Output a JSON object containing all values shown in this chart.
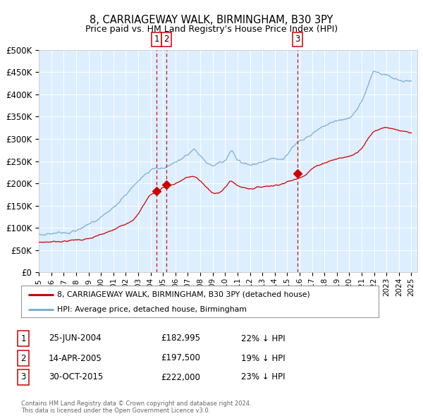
{
  "title": "8, CARRIAGEWAY WALK, BIRMINGHAM, B30 3PY",
  "subtitle": "Price paid vs. HM Land Registry's House Price Index (HPI)",
  "title_fontsize": 10.5,
  "subtitle_fontsize": 9.0,
  "background_color": "#ddeeff",
  "fig_bg_color": "#ffffff",
  "ylim": [
    0,
    500000
  ],
  "yticks": [
    0,
    50000,
    100000,
    150000,
    200000,
    250000,
    300000,
    350000,
    400000,
    450000,
    500000
  ],
  "legend_entries": [
    "8, CARRIAGEWAY WALK, BIRMINGHAM, B30 3PY (detached house)",
    "HPI: Average price, detached house, Birmingham"
  ],
  "legend_colors": [
    "#cc0000",
    "#7ab0d4"
  ],
  "sale_dates": [
    "25-JUN-2004",
    "14-APR-2005",
    "30-OCT-2015"
  ],
  "sale_prices": [
    182995,
    197500,
    222000
  ],
  "sale_labels": [
    "1",
    "2",
    "3"
  ],
  "sale_hpi_pct": [
    "22%",
    "19%",
    "23%"
  ],
  "vline_x": [
    2004.48,
    2005.29,
    2015.83
  ],
  "footer_text": "Contains HM Land Registry data © Crown copyright and database right 2024.\nThis data is licensed under the Open Government Licence v3.0.",
  "grid_color": "#ffffff",
  "vline_color": "#cc0000",
  "red_line_color": "#cc0000",
  "blue_line_color": "#7ab0d4",
  "price_col": [
    "£182,995",
    "£197,500",
    "£222,000"
  ]
}
